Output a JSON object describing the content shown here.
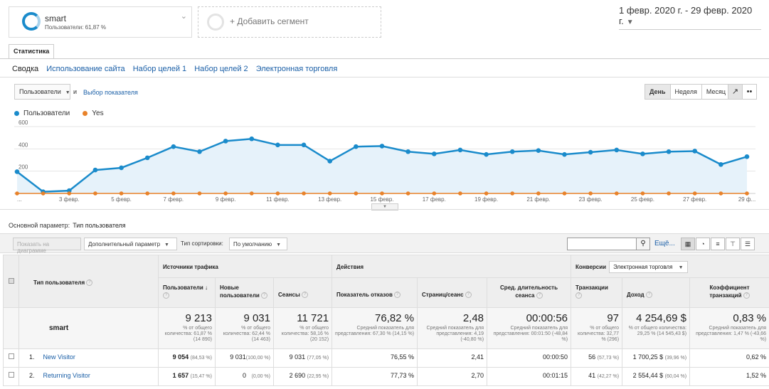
{
  "segments": {
    "active": {
      "name": "smart",
      "sub": "Пользователи: 61,87 %"
    },
    "add_label": "+ Добавить сегмент"
  },
  "date_range": "1 февр. 2020 г. - 29 февр. 2020 г.",
  "tab": "Статистика",
  "subnav": [
    "Сводка",
    "Использование сайта",
    "Набор целей 1",
    "Набор целей 2",
    "Электронная торговля"
  ],
  "metric_selector": {
    "primary": "Пользователи",
    "and": "и",
    "link": "Выбор показателя"
  },
  "period_buttons": [
    "День",
    "Неделя",
    "Месяц"
  ],
  "legend": [
    {
      "name": "Пользователи",
      "color": "#1a8bcb"
    },
    {
      "name": "Yes",
      "color": "#e8822a"
    }
  ],
  "chart_data": {
    "type": "line",
    "x": [
      "1 февр.",
      "2 февр.",
      "3 февр.",
      "4 февр.",
      "5 февр.",
      "6 февр.",
      "7 февр.",
      "8 февр.",
      "9 февр.",
      "10 февр.",
      "11 февр.",
      "12 февр.",
      "13 февр.",
      "14 февр.",
      "15 февр.",
      "16 февр.",
      "17 февр.",
      "18 февр.",
      "19 февр.",
      "20 февр.",
      "21 февр.",
      "22 февр.",
      "23 февр.",
      "24 февр.",
      "25 февр.",
      "26 февр.",
      "27 февр.",
      "28 февр.",
      "29 февр."
    ],
    "tick_labels": [
      "...",
      "3 февр.",
      "5 февр.",
      "7 февр.",
      "9 февр.",
      "11 февр.",
      "13 февр.",
      "15 февр.",
      "17 февр.",
      "19 февр.",
      "21 февр.",
      "23 февр.",
      "25 февр.",
      "27 февр.",
      "29 ф..."
    ],
    "series": [
      {
        "name": "Пользователи",
        "values": [
          195,
          15,
          25,
          210,
          230,
          320,
          420,
          375,
          470,
          490,
          435,
          435,
          290,
          420,
          425,
          375,
          355,
          390,
          350,
          375,
          385,
          350,
          370,
          390,
          355,
          375,
          380,
          260,
          330
        ]
      },
      {
        "name": "Yes",
        "values": [
          0,
          0,
          0,
          0,
          0,
          0,
          0,
          0,
          0,
          0,
          0,
          0,
          0,
          0,
          0,
          0,
          0,
          0,
          0,
          0,
          0,
          0,
          0,
          0,
          0,
          0,
          0,
          0,
          0
        ]
      }
    ],
    "y_ticks": [
      200,
      400,
      600
    ],
    "ylim": [
      0,
      600
    ],
    "grid": true
  },
  "primary_dimension": {
    "label": "Основной параметр:",
    "value": "Тип пользователя"
  },
  "toolbar": {
    "plot_rows": "Показать на диаграмме",
    "secondary": "Дополнительный параметр",
    "sort_label": "Тип сортировки:",
    "sort_value": "По умолчанию",
    "more": "Ещё..."
  },
  "table": {
    "dim_header": "Тип пользователя",
    "groups": {
      "traffic": "Источники трафика",
      "actions": "Действия",
      "conversions": "Конверсии",
      "conv_select": "Электронная торговля"
    },
    "columns": [
      "Пользователи",
      "Новые пользователи",
      "Сеансы",
      "Показатель отказов",
      "Страниц/сеанс",
      "Сред. длительность сеанса",
      "Транзакции",
      "Доход",
      "Коэффициент транзакций"
    ],
    "total": {
      "label": "smart",
      "values": [
        "9 213",
        "9 031",
        "11 721",
        "76,82 %",
        "2,48",
        "00:00:56",
        "97",
        "4 254,69 $",
        "0,83 %"
      ],
      "notes": [
        "% от общего количества: 61,87 % (14 890)",
        "% от общего количества: 62,44 % (14 463)",
        "% от общего количества: 58,16 % (20 152)",
        "Средний показатель для представления: 67,30 % (14,15 %)",
        "Средний показатель для представления: 4,19 (-40,80 %)",
        "Средний показатель для представления: 00:01:50 (-48,84 %)",
        "% от общего количества: 32,77 % (296)",
        "% от общего количества: 29,25 % (14 545,43 $)",
        "Средний показатель для представления: 1,47 % (-43,66 %)"
      ]
    },
    "rows": [
      {
        "num": "1.",
        "name": "New Visitor",
        "users": "9 054",
        "users_pct": "(84,53 %)",
        "new_users": "9 031",
        "new_users_pct": "(100,00 %)",
        "sessions": "9 031",
        "sessions_pct": "(77,05 %)",
        "bounce": "76,55 %",
        "pages": "2,41",
        "duration": "00:00:50",
        "trans": "56",
        "trans_pct": "(57,73 %)",
        "revenue": "1 700,25 $",
        "revenue_pct": "(39,96 %)",
        "rate": "0,62 %"
      },
      {
        "num": "2.",
        "name": "Returning Visitor",
        "users": "1 657",
        "users_pct": "(15,47 %)",
        "new_users": "0",
        "new_users_pct": "(0,00 %)",
        "sessions": "2 690",
        "sessions_pct": "(22,95 %)",
        "bounce": "77,73 %",
        "pages": "2,70",
        "duration": "00:01:15",
        "trans": "41",
        "trans_pct": "(42,27 %)",
        "revenue": "2 554,44 $",
        "revenue_pct": "(60,04 %)",
        "rate": "1,52 %"
      }
    ]
  }
}
